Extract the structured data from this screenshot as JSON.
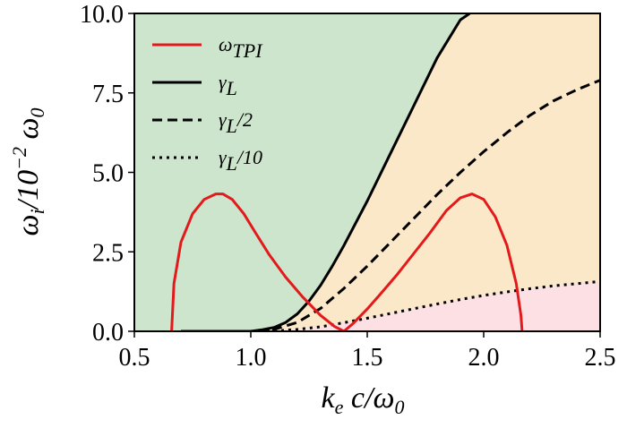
{
  "chart_data": {
    "type": "line",
    "title": "",
    "xlabel": "k_e c/ω_0",
    "ylabel": "ω_i/10^-2 ω_0",
    "xlim": [
      0.5,
      2.5
    ],
    "ylim": [
      0.0,
      10.0
    ],
    "x_ticks": [
      "0.5",
      "1.0",
      "1.5",
      "2.0",
      "2.5"
    ],
    "y_ticks": [
      "0.0",
      "2.5",
      "5.0",
      "7.5",
      "10.0"
    ],
    "legend_position": "top-left",
    "grid": false,
    "colors": {
      "region_green": "#cce5cc",
      "region_orange": "#fbe8c8",
      "region_pink": "#fce0e4",
      "tpi_line": "#e31a1c",
      "landau_line": "#000000"
    },
    "series": [
      {
        "name": "ω_TPI",
        "style": "solid",
        "color": "#e31a1c",
        "segments": [
          {
            "x": [
              0.66,
              0.67,
              0.7,
              0.75,
              0.8,
              0.85,
              0.88,
              0.92,
              0.97,
              1.02,
              1.08,
              1.15,
              1.22,
              1.3,
              1.36,
              1.4
            ],
            "y": [
              0.0,
              1.5,
              2.8,
              3.7,
              4.15,
              4.32,
              4.32,
              4.15,
              3.7,
              3.1,
              2.4,
              1.7,
              1.1,
              0.5,
              0.15,
              0.0
            ]
          },
          {
            "x": [
              1.4,
              1.44,
              1.5,
              1.56,
              1.63,
              1.7,
              1.77,
              1.84,
              1.9,
              1.95,
              2.0,
              2.05,
              2.1,
              2.14,
              2.16,
              2.165
            ],
            "y": [
              0.0,
              0.25,
              0.7,
              1.2,
              1.8,
              2.45,
              3.1,
              3.8,
              4.2,
              4.32,
              4.15,
              3.6,
              2.7,
              1.5,
              0.5,
              0.0
            ]
          }
        ]
      },
      {
        "name": "γ_L",
        "style": "solid",
        "color": "#000000",
        "x": [
          0.7,
          1.0,
          1.05,
          1.1,
          1.15,
          1.2,
          1.25,
          1.3,
          1.35,
          1.4,
          1.5,
          1.6,
          1.7,
          1.8,
          1.9,
          1.94
        ],
        "y": [
          0.0,
          0.0,
          0.05,
          0.12,
          0.28,
          0.55,
          0.95,
          1.45,
          2.05,
          2.7,
          4.1,
          5.6,
          7.1,
          8.6,
          9.8,
          10.0
        ]
      },
      {
        "name": "γ_L/2",
        "style": "dashed",
        "color": "#000000",
        "x": [
          0.7,
          1.0,
          1.1,
          1.2,
          1.3,
          1.4,
          1.5,
          1.6,
          1.7,
          1.8,
          1.9,
          2.0,
          2.1,
          2.2,
          2.3,
          2.4,
          2.5
        ],
        "y": [
          0.0,
          0.0,
          0.06,
          0.28,
          0.72,
          1.35,
          2.05,
          2.8,
          3.55,
          4.3,
          5.0,
          5.65,
          6.25,
          6.8,
          7.25,
          7.6,
          7.9
        ]
      },
      {
        "name": "γ_L/10",
        "style": "dotted",
        "color": "#000000",
        "x": [
          0.7,
          1.0,
          1.1,
          1.2,
          1.3,
          1.4,
          1.5,
          1.6,
          1.7,
          1.8,
          1.9,
          2.0,
          2.1,
          2.2,
          2.3,
          2.4,
          2.5
        ],
        "y": [
          0.0,
          0.0,
          0.01,
          0.06,
          0.14,
          0.27,
          0.41,
          0.56,
          0.71,
          0.86,
          1.0,
          1.13,
          1.24,
          1.34,
          1.43,
          1.5,
          1.57
        ]
      }
    ]
  }
}
